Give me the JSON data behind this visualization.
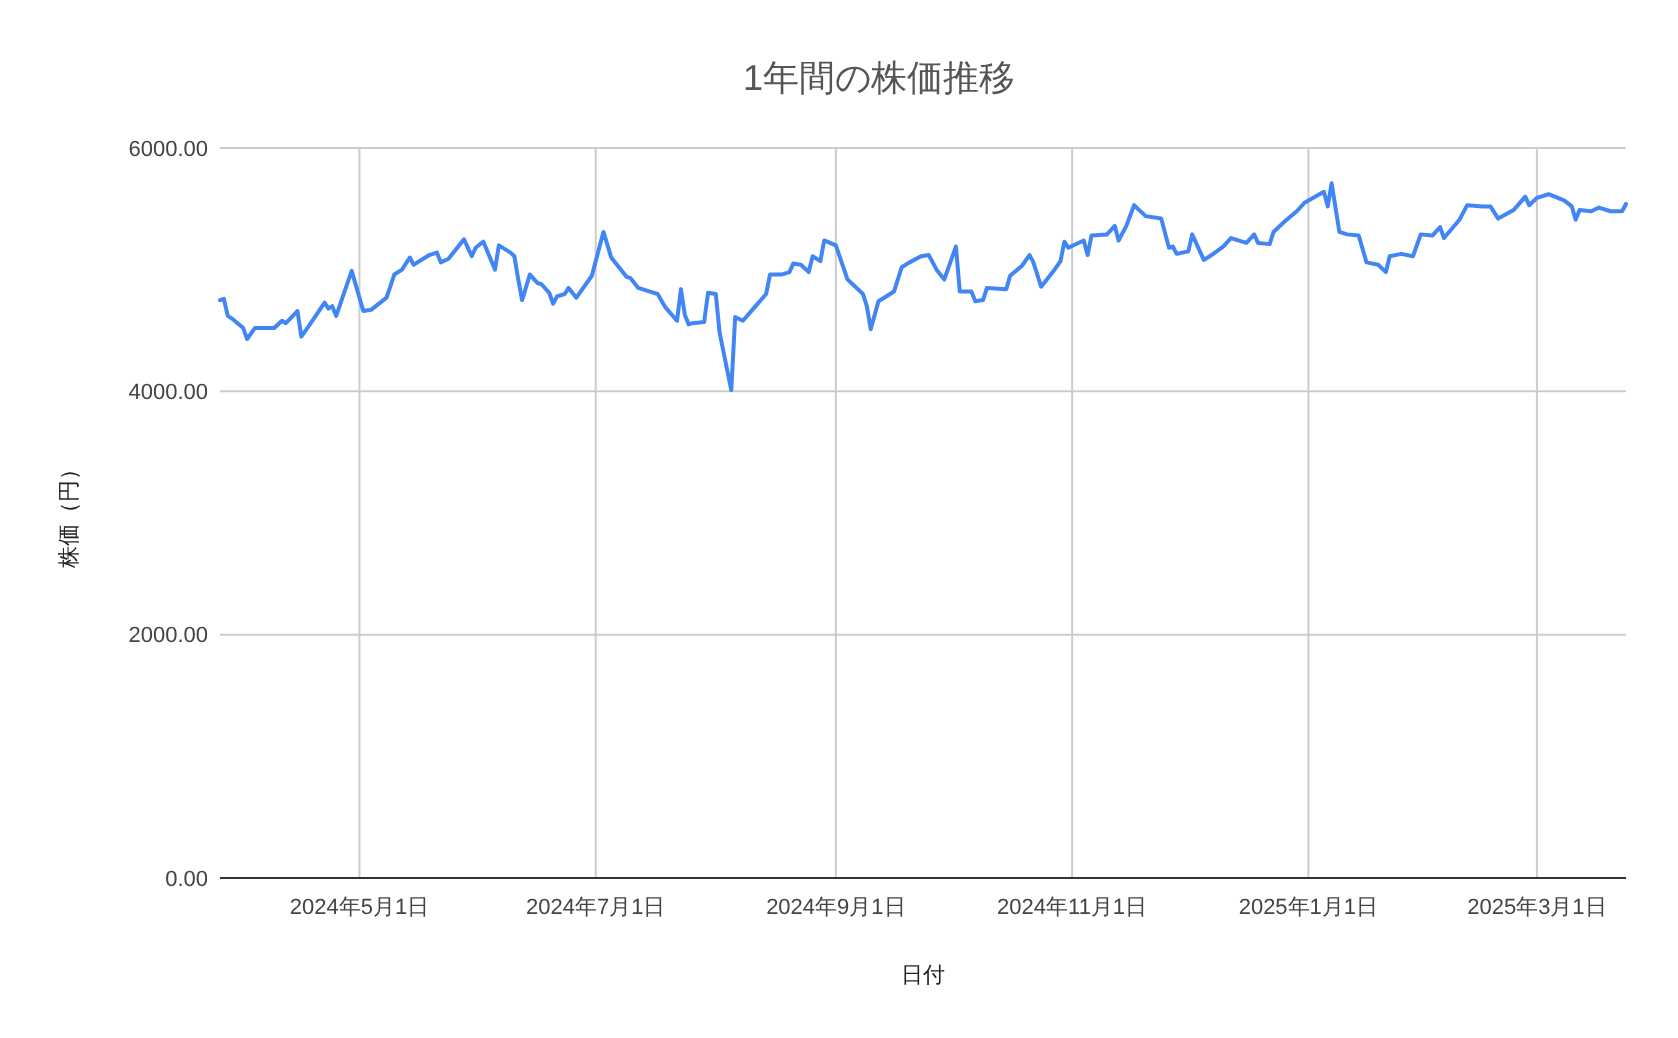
{
  "chart_data": {
    "type": "line",
    "title": "1年間の株価推移",
    "xlabel": "日付",
    "ylabel": "株価（円）",
    "x": [
      "2024-03-26",
      "2024-03-27",
      "2024-03-28",
      "2024-03-29",
      "2024-04-01",
      "2024-04-02",
      "2024-04-04",
      "2024-04-06",
      "2024-04-09",
      "2024-04-11",
      "2024-04-12",
      "2024-04-15",
      "2024-04-16",
      "2024-04-18",
      "2024-04-22",
      "2024-04-23",
      "2024-04-24",
      "2024-04-25",
      "2024-04-29",
      "2024-05-02",
      "2024-05-04",
      "2024-05-08",
      "2024-05-10",
      "2024-05-12",
      "2024-05-14",
      "2024-05-15",
      "2024-05-19",
      "2024-05-21",
      "2024-05-22",
      "2024-05-24",
      "2024-05-28",
      "2024-05-30",
      "2024-05-31",
      "2024-06-02",
      "2024-06-05",
      "2024-06-06",
      "2024-06-09",
      "2024-06-10",
      "2024-06-11",
      "2024-06-12",
      "2024-06-14",
      "2024-06-16",
      "2024-06-17",
      "2024-06-19",
      "2024-06-20",
      "2024-06-21",
      "2024-06-23",
      "2024-06-24",
      "2024-06-26",
      "2024-06-30",
      "2024-07-03",
      "2024-07-05",
      "2024-07-09",
      "2024-07-10",
      "2024-07-12",
      "2024-07-15",
      "2024-07-17",
      "2024-07-19",
      "2024-07-22",
      "2024-07-23",
      "2024-07-24",
      "2024-07-25",
      "2024-07-26",
      "2024-07-29",
      "2024-07-30",
      "2024-08-01",
      "2024-08-02",
      "2024-08-05",
      "2024-08-06",
      "2024-08-08",
      "2024-08-11",
      "2024-08-14",
      "2024-08-15",
      "2024-08-18",
      "2024-08-20",
      "2024-08-21",
      "2024-08-23",
      "2024-08-25",
      "2024-08-26",
      "2024-08-28",
      "2024-08-29",
      "2024-09-01",
      "2024-09-04",
      "2024-09-08",
      "2024-09-09",
      "2024-09-10",
      "2024-09-12",
      "2024-09-14",
      "2024-09-16",
      "2024-09-18",
      "2024-09-20",
      "2024-09-23",
      "2024-09-25",
      "2024-09-27",
      "2024-09-29",
      "2024-10-02",
      "2024-10-03",
      "2024-10-06",
      "2024-10-07",
      "2024-10-09",
      "2024-10-10",
      "2024-10-15",
      "2024-10-16",
      "2024-10-19",
      "2024-10-21",
      "2024-10-22",
      "2024-10-24",
      "2024-10-27",
      "2024-10-29",
      "2024-10-30",
      "2024-10-31",
      "2024-11-04",
      "2024-11-05",
      "2024-11-06",
      "2024-11-10",
      "2024-11-12",
      "2024-11-13",
      "2024-11-15",
      "2024-11-17",
      "2024-11-20",
      "2024-11-24",
      "2024-11-26",
      "2024-11-27",
      "2024-11-28",
      "2024-12-01",
      "2024-12-02",
      "2024-12-05",
      "2024-12-07",
      "2024-12-10",
      "2024-12-12",
      "2024-12-16",
      "2024-12-18",
      "2024-12-19",
      "2024-12-22",
      "2024-12-23",
      "2024-12-26",
      "2024-12-29",
      "2024-12-31",
      "2025-01-05",
      "2025-01-06",
      "2025-01-07",
      "2025-01-09",
      "2025-01-11",
      "2025-01-14",
      "2025-01-16",
      "2025-01-19",
      "2025-01-21",
      "2025-01-22",
      "2025-01-25",
      "2025-01-28",
      "2025-01-30",
      "2025-02-02",
      "2025-02-04",
      "2025-02-05",
      "2025-02-09",
      "2025-02-11",
      "2025-02-15",
      "2025-02-17",
      "2025-02-19",
      "2025-02-23",
      "2025-02-26",
      "2025-02-27",
      "2025-03-01",
      "2025-03-04",
      "2025-03-08",
      "2025-03-10",
      "2025-03-11",
      "2025-03-12",
      "2025-03-15",
      "2025-03-17",
      "2025-03-20",
      "2025-03-23",
      "2025-03-24"
    ],
    "series": [
      {
        "color": "#4285f4",
        "values": [
          4750,
          4760,
          4620,
          4600,
          4520,
          4430,
          4520,
          4520,
          4520,
          4580,
          4560,
          4660,
          4450,
          4540,
          4730,
          4680,
          4700,
          4620,
          4990,
          4660,
          4670,
          4770,
          4960,
          5000,
          5100,
          5040,
          5120,
          5140,
          5060,
          5090,
          5250,
          5110,
          5180,
          5230,
          5000,
          5200,
          5140,
          5110,
          4920,
          4750,
          4960,
          4890,
          4880,
          4810,
          4720,
          4780,
          4800,
          4850,
          4770,
          4950,
          5310,
          5100,
          4940,
          4930,
          4850,
          4820,
          4800,
          4690,
          4580,
          4840,
          4630,
          4550,
          4560,
          4570,
          4810,
          4800,
          4480,
          4010,
          4610,
          4580,
          4690,
          4800,
          4960,
          4960,
          4980,
          5050,
          5040,
          4980,
          5110,
          5070,
          5240,
          5200,
          4920,
          4800,
          4700,
          4510,
          4740,
          4780,
          4820,
          5020,
          5060,
          5110,
          5120,
          5000,
          4920,
          5190,
          4820,
          4820,
          4740,
          4750,
          4850,
          4840,
          4950,
          5030,
          5120,
          5060,
          4860,
          4980,
          5070,
          5230,
          5180,
          5240,
          5120,
          5280,
          5290,
          5360,
          5240,
          5360,
          5530,
          5440,
          5420,
          5180,
          5190,
          5130,
          5150,
          5290,
          5080,
          5120,
          5190,
          5260,
          5220,
          5290,
          5220,
          5210,
          5310,
          5400,
          5480,
          5550,
          5640,
          5520,
          5710,
          5310,
          5290,
          5280,
          5060,
          5040,
          4980,
          5110,
          5130,
          5110,
          5290,
          5280,
          5350,
          5260,
          5410,
          5530,
          5520,
          5520,
          5420,
          5490,
          5600,
          5530,
          5590,
          5620,
          5570,
          5520,
          5410,
          5490,
          5480,
          5510,
          5480,
          5480,
          5540
        ]
      }
    ],
    "xlim": [
      "2024-03-26",
      "2025-03-24"
    ],
    "xticks": [
      {
        "value": "2024-05-01",
        "label": "2024年5月1日"
      },
      {
        "value": "2024-07-01",
        "label": "2024年7月1日"
      },
      {
        "value": "2024-09-01",
        "label": "2024年9月1日"
      },
      {
        "value": "2024-11-01",
        "label": "2024年11月1日"
      },
      {
        "value": "2025-01-01",
        "label": "2025年1月1日"
      },
      {
        "value": "2025-03-01",
        "label": "2025年3月1日"
      }
    ],
    "ylim": [
      0,
      6000
    ],
    "yticks": [
      {
        "value": 0,
        "label": "0.00"
      },
      {
        "value": 2000,
        "label": "2000.00"
      },
      {
        "value": 4000,
        "label": "4000.00"
      },
      {
        "value": 6000,
        "label": "6000.00"
      }
    ],
    "grid": true,
    "marker": "none",
    "line_style": "solid"
  }
}
